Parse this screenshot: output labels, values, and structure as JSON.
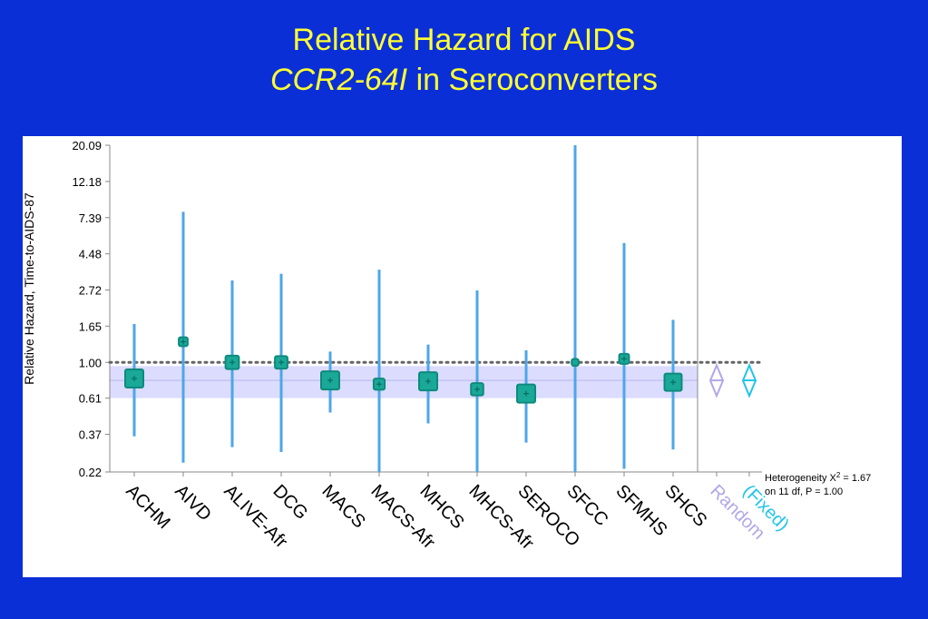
{
  "title": {
    "line1": "Relative Hazard for AIDS",
    "line2_italic": "CCR2-64I",
    "line2_rest": " in Seroconverters"
  },
  "colors": {
    "background": "#0b2fd6",
    "title": "#ffff33",
    "study_line": "#4da6e8",
    "study_box": "#1aa898",
    "pooled_band": "#dcdcff",
    "random": "#b0a8e8",
    "fixed": "#22c4e8"
  },
  "chart_data": {
    "type": "forest",
    "ylabel": "Relative Hazard, Time-to-AIDS-87",
    "yscale": "log",
    "y_ticks": [
      "20.09",
      "12.18",
      "7.39",
      "4.48",
      "2.72",
      "1.65",
      "1.00",
      "0.61",
      "0.37",
      "0.22"
    ],
    "ylim": [
      0.22,
      20.09
    ],
    "reference_line": 1.0,
    "pooled_estimate": 0.78,
    "pooled_band": [
      0.61,
      0.95
    ],
    "studies": [
      {
        "name": "ACHM",
        "estimate": 0.8,
        "lower": 0.36,
        "upper": 1.7
      },
      {
        "name": "AIVD",
        "estimate": 1.33,
        "lower": 0.25,
        "upper": 8.0
      },
      {
        "name": "ALIVE-Afr",
        "estimate": 1.0,
        "lower": 0.31,
        "upper": 3.1
      },
      {
        "name": "DCG",
        "estimate": 1.0,
        "lower": 0.29,
        "upper": 3.4
      },
      {
        "name": "MACS",
        "estimate": 0.78,
        "lower": 0.5,
        "upper": 1.16
      },
      {
        "name": "MACS-Afr",
        "estimate": 0.74,
        "lower": 0.22,
        "upper": 3.6
      },
      {
        "name": "MHCS",
        "estimate": 0.77,
        "lower": 0.43,
        "upper": 1.28
      },
      {
        "name": "MHCS-Afr",
        "estimate": 0.69,
        "lower": 0.22,
        "upper": 2.7
      },
      {
        "name": "SEROCO",
        "estimate": 0.65,
        "lower": 0.33,
        "upper": 1.18
      },
      {
        "name": "SFCC",
        "estimate": 1.0,
        "lower": 0.22,
        "upper": 20.09
      },
      {
        "name": "SFMHS",
        "estimate": 1.05,
        "lower": 0.23,
        "upper": 5.2
      },
      {
        "name": "SHCS",
        "estimate": 0.76,
        "lower": 0.3,
        "upper": 1.8
      }
    ],
    "summary": [
      {
        "name": "Random",
        "estimate": 0.78,
        "lower": 0.63,
        "upper": 0.96
      },
      {
        "name": "(Fixed)",
        "estimate": 0.78,
        "lower": 0.63,
        "upper": 0.96
      }
    ],
    "heterogeneity": {
      "line1_prefix": "Heterogeneity X",
      "line1_sup": "2",
      "line1_suffix": " = 1.67",
      "line2": "on 11 df, P = 1.00"
    }
  }
}
